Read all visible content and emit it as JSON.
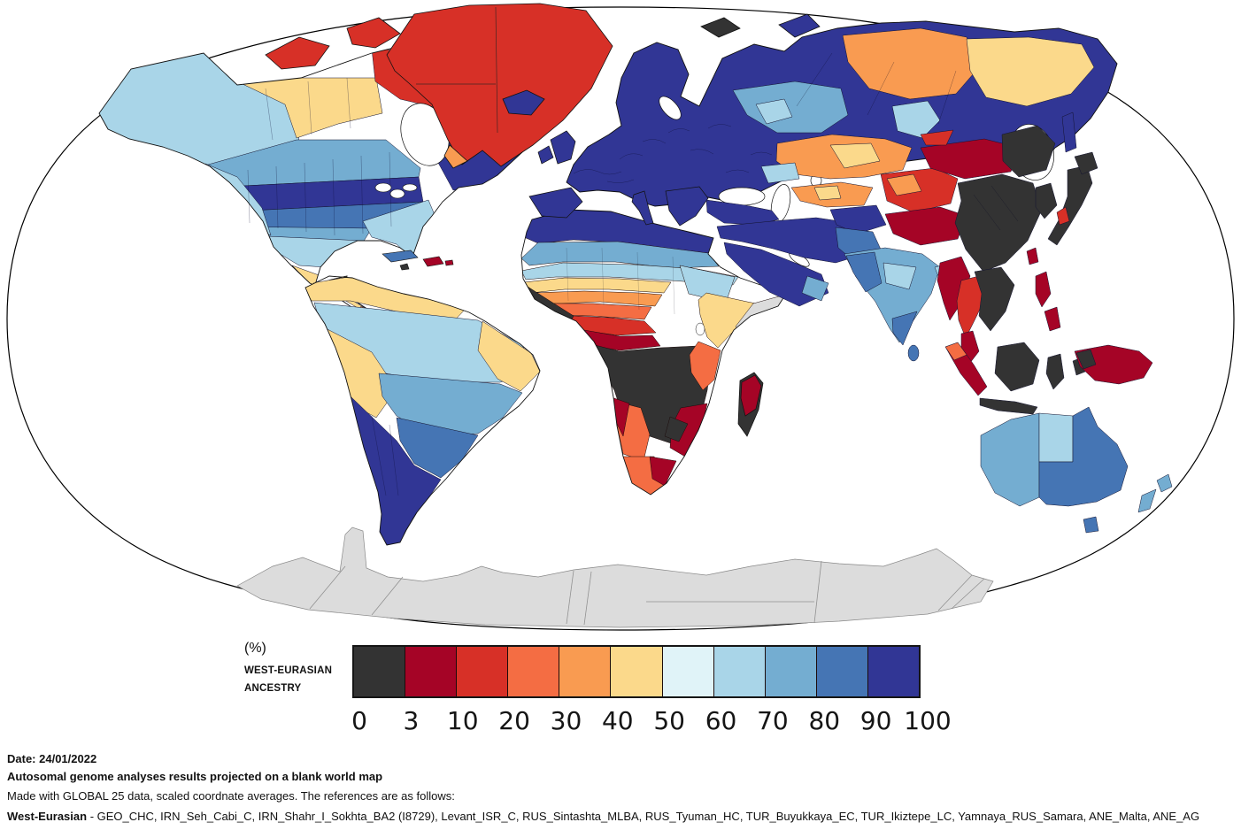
{
  "legend": {
    "unit_label": "(%)",
    "title_line1": "WEST-EURASIAN",
    "title_line2": "ANCESTRY",
    "ticks": [
      "0",
      "3",
      "10",
      "20",
      "30",
      "40",
      "50",
      "60",
      "70",
      "80",
      "90",
      "100"
    ],
    "buckets": [
      {
        "range": "0-3",
        "color": "#333333"
      },
      {
        "range": "3-10",
        "color": "#a50426"
      },
      {
        "range": "10-20",
        "color": "#d73027"
      },
      {
        "range": "20-30",
        "color": "#f46d43"
      },
      {
        "range": "30-40",
        "color": "#f99b51"
      },
      {
        "range": "40-50",
        "color": "#fbd98b"
      },
      {
        "range": "50-60",
        "color": "#e0f3f8"
      },
      {
        "range": "60-70",
        "color": "#a9d5e8"
      },
      {
        "range": "70-80",
        "color": "#74add1"
      },
      {
        "range": "80-90",
        "color": "#4575b4"
      },
      {
        "range": "90-100",
        "color": "#313695"
      }
    ]
  },
  "footer": {
    "date_line": "Date: 24/01/2022",
    "title_line": "Autosomal genome analyses results projected on a blank world map",
    "method_line": "Made with GLOBAL 25 data, scaled coordnate averages. The references are as follows:",
    "references_label": "West-Eurasian",
    "references_text": " - GEO_CHC, IRN_Seh_Cabi_C, IRN_Shahr_I_Sokhta_BA2 (I8729), Levant_ISR_C, RUS_Sintashta_MLBA, RUS_Tyuman_HC, TUR_Buyukkaya_EC, TUR_Ikiztepe_LC, Yamnaya_RUS_Samara, ANE_Malta, ANE_AG"
  },
  "map": {
    "ocean_color": "#ffffff",
    "outline_color": "#000000",
    "no_data_color": "#dcdcdc",
    "regions": {
      "greenland": "10-20",
      "greenland-south-tip": "30-40",
      "arctic-island-1": "10-20",
      "arctic-island-2": "10-20",
      "arctic-island-3": "10-20",
      "svalbard": "0-3",
      "novaya-zemlya": "90-100",
      "iceland": "90-100",
      "alaska-west-canada": "60-70",
      "canada-central": "40-50",
      "canada-arctic": "10-20",
      "canada-quebec": "90-100",
      "us-north": "70-80",
      "us-central": "90-100",
      "us-mid": "80-90",
      "us-south": "70-80",
      "us-southeast": "60-70",
      "us-west": "60-70",
      "mexico": "60-70",
      "mexico-south": "40-50",
      "baja": "40-50",
      "central-america": "40-50",
      "central-america-orange": "30-40",
      "cuba": "80-90",
      "jamaica": "0-3",
      "hispaniola": "3-10",
      "puerto-rico": "3-10",
      "sa-north-coast": "40-50",
      "amazon": "60-70",
      "peru-bolivia": "40-50",
      "ne-brazil": "40-50",
      "central-brazil": "70-80",
      "south-brazil": "80-90",
      "argentina-chile": "90-100",
      "uk": "90-100",
      "ireland": "90-100",
      "iberia": "90-100",
      "italy": "90-100",
      "balkans": "90-100",
      "europe-russia": "90-100",
      "russia-west-blue": "70-80",
      "russia-west-lightblue": "60-70",
      "siberia-north": "30-40",
      "yakutia": "40-50",
      "yakutia-lightblue": "60-70",
      "turkey": "90-100",
      "iran-levant": "90-100",
      "arabia": "90-100",
      "gulf-coast": "70-80",
      "kazakhstan": "30-40",
      "kazakhstan-yellow": "40-50",
      "caspian-north-lightblue": "60-70",
      "central-asia-south": "30-40",
      "central-asia-yellow": "40-50",
      "afghanistan": "90-100",
      "pakistan": "80-90",
      "india": "70-80",
      "india-west": "80-90",
      "india-light": "60-70",
      "india-south": "80-90",
      "sri-lanka": "80-90",
      "bangladesh": "60-70",
      "xinjiang": "10-20",
      "xinjiang-orange": "30-40",
      "tibet": "3-10",
      "mongolia": "3-10",
      "tuva": "10-20",
      "east-china": "0-3",
      "manchuria": "0-3",
      "korea": "0-3",
      "sakhalin": "90-100",
      "japan-honshu": "0-3",
      "hokkaido": "0-3",
      "japan-red-patch": "10-20",
      "taiwan": "3-10",
      "myanmar": "3-10",
      "thailand": "10-20",
      "indochina": "0-3",
      "malay-peninsula": "3-10",
      "sumatra": "3-10",
      "sumatra-north": "20-30",
      "java": "0-3",
      "borneo": "0-3",
      "sulawesi": "0-3",
      "moluccas": "0-3",
      "philippines-north": "3-10",
      "philippines-south": "3-10",
      "new-guinea": "3-10",
      "west-papua": "0-3",
      "australia-west": "70-80",
      "australia-nt": "60-70",
      "australia-east": "80-90",
      "tasmania": "80-90",
      "nz-north": "70-80",
      "nz-south": "70-80",
      "africa-north-coast": "90-100",
      "sahara-band-1": "70-80",
      "sahara-band-2": "60-70",
      "egypt-sudan": "60-70",
      "sahel-yellow": "40-50",
      "sahel-orange": "30-40",
      "sahel-orange-red": "20-30",
      "sahel-red": "10-20",
      "west-africa-coast": "0-3",
      "west-africa-dark-red": "3-10",
      "congo-basin": "0-3",
      "ethiopia": "40-50",
      "somalia": "no_data",
      "kenya-tanzania": "20-30",
      "mozambique-zimbabwe": "3-10",
      "moz-black-patch": "0-3",
      "namibia": "20-30",
      "namibia-west-dark-red": "3-10",
      "south-africa": "20-30",
      "south-africa-dark-red": "3-10",
      "madagascar": "0-3",
      "madagascar-north": "3-10",
      "antarctica": "no_data"
    }
  }
}
